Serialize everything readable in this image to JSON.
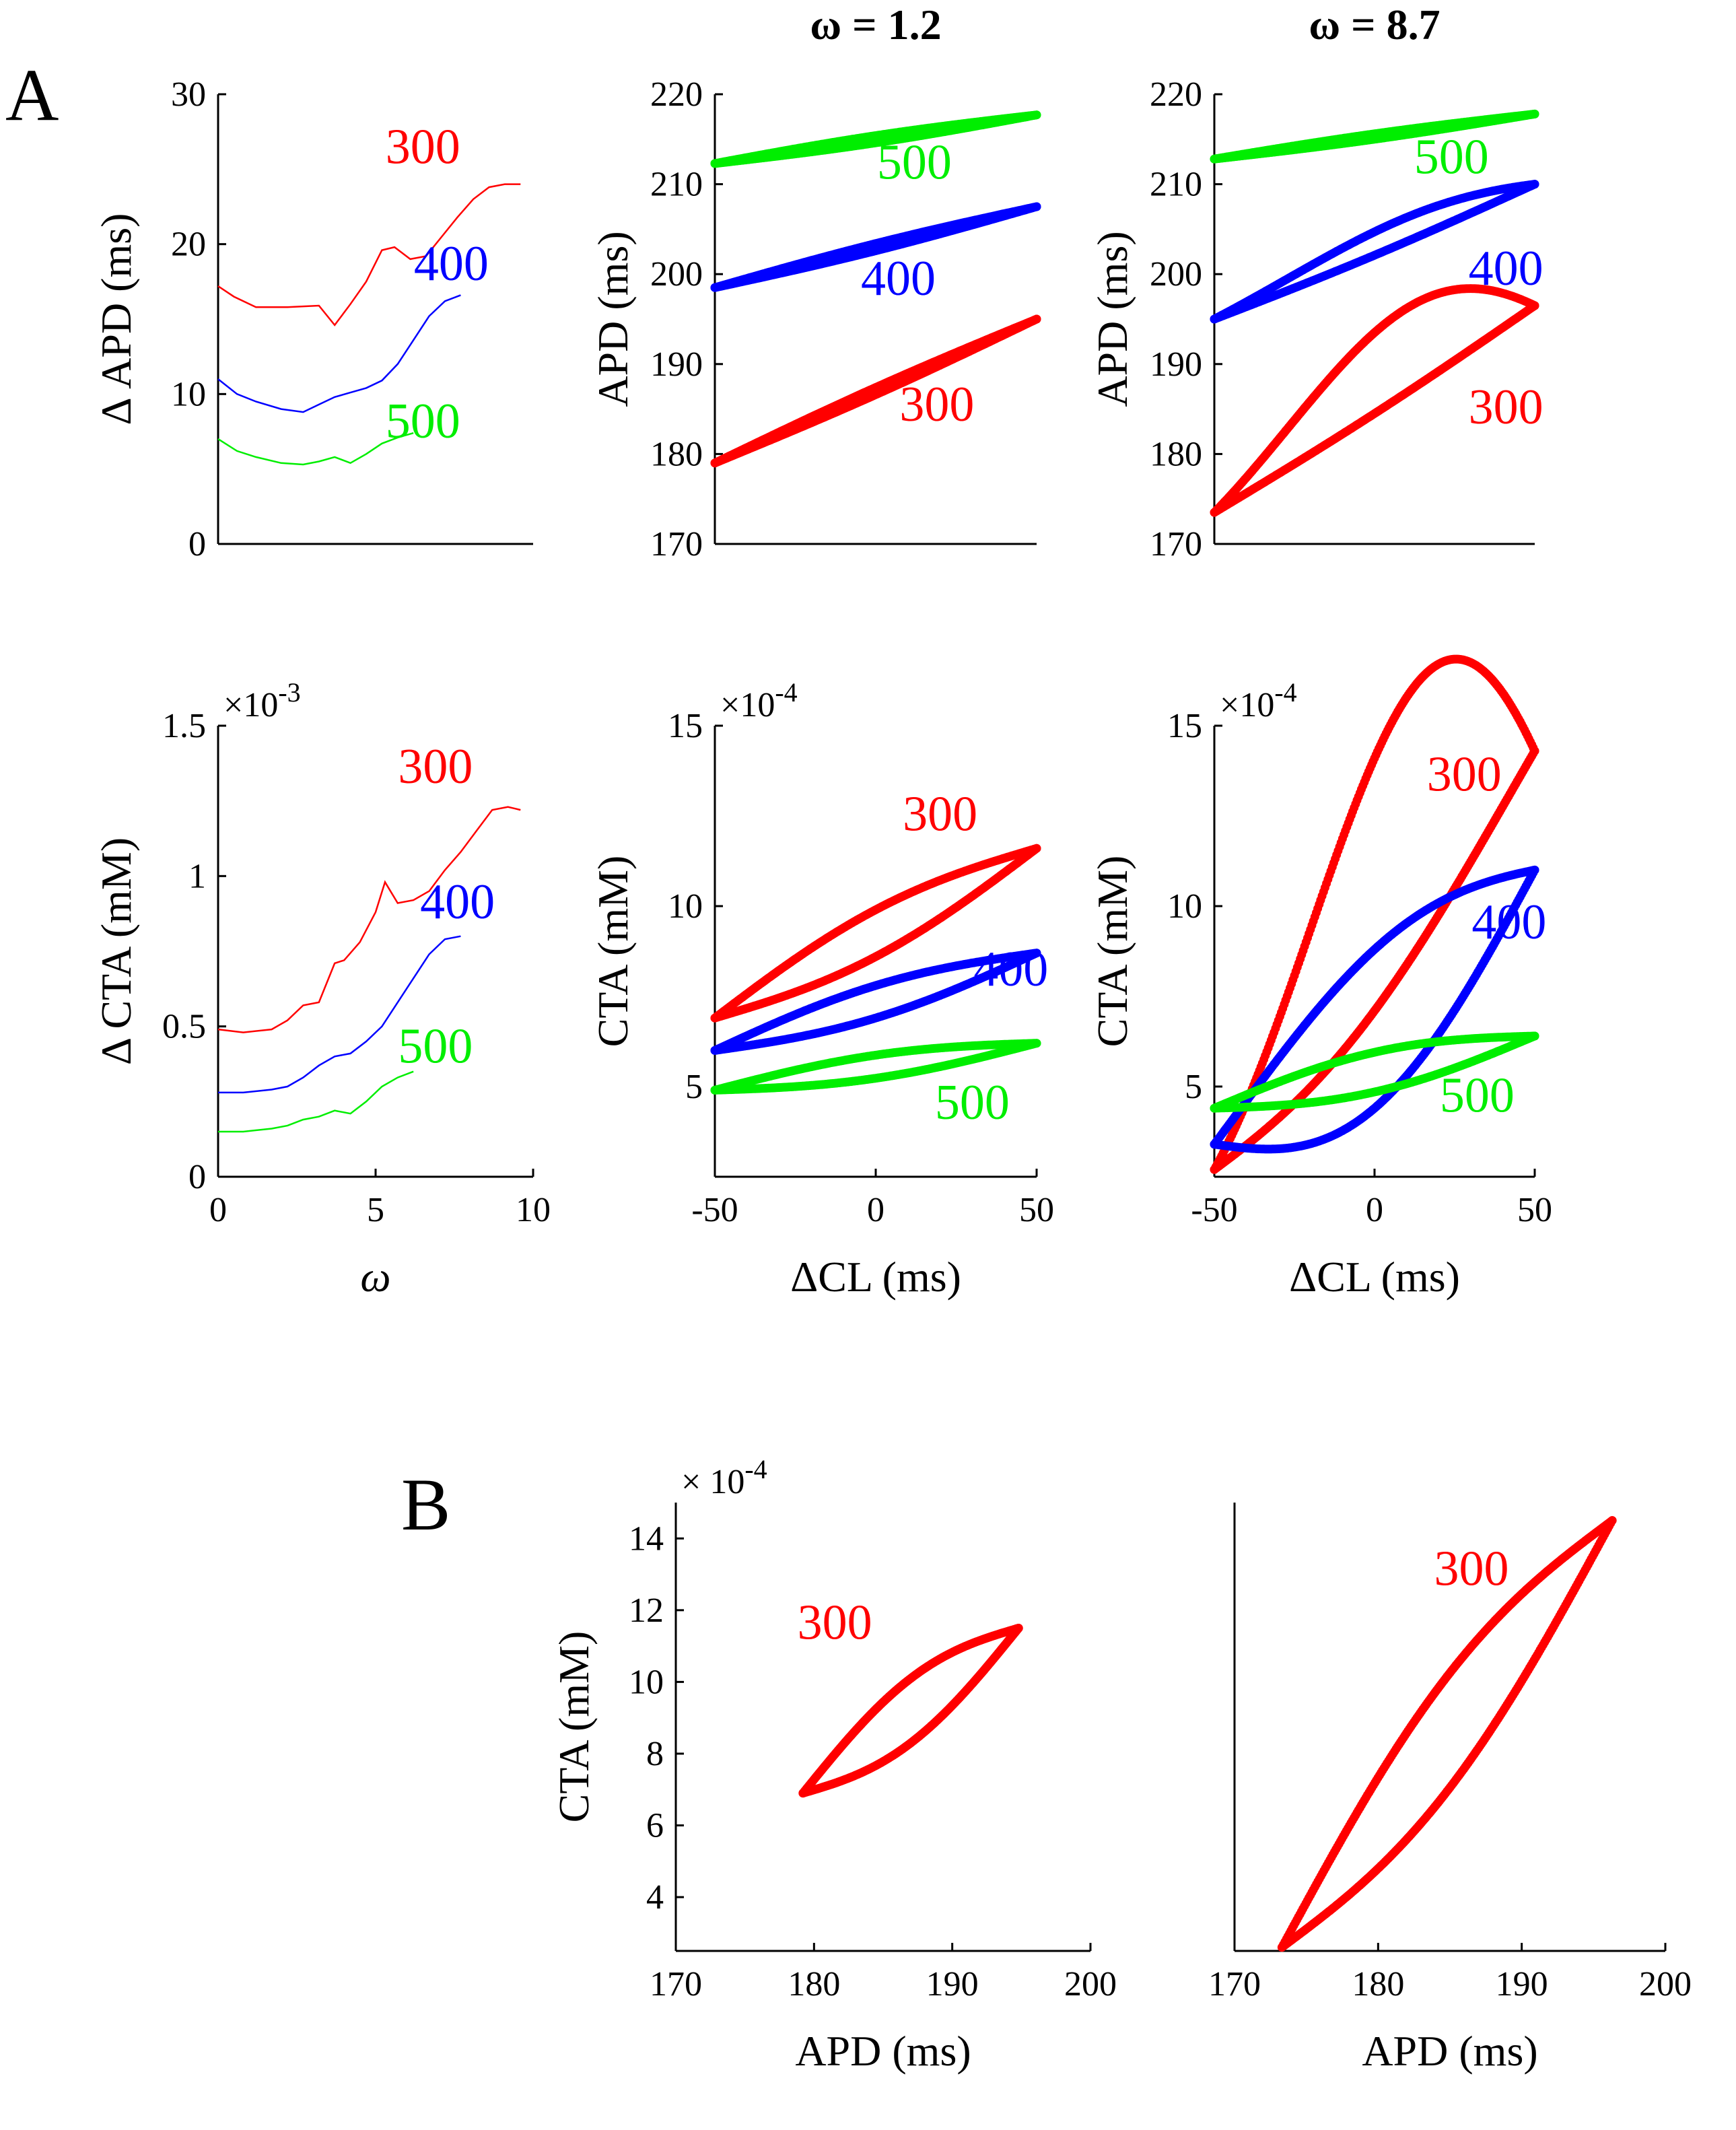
{
  "panel_letters": [
    "A",
    "B"
  ],
  "colors": {
    "300": "#ff0000",
    "400": "#0000ff",
    "500": "#00ee00"
  },
  "chart_data": [
    {
      "id": "dAPD-omega",
      "type": "line",
      "xlabel": "",
      "ylabel": "Δ APD (ms)",
      "title": "",
      "xlim": [
        0,
        10
      ],
      "ylim": [
        0,
        30
      ],
      "xticks": [],
      "yticks": [
        0,
        10,
        20,
        30
      ],
      "series": [
        {
          "name": "300",
          "x": [
            0,
            0.5,
            1.2,
            2.2,
            3.2,
            3.7,
            4.2,
            4.7,
            5.2,
            5.6,
            6.1,
            6.6,
            7.1,
            7.6,
            8.1,
            8.6,
            9.1,
            9.6
          ],
          "y": [
            17.2,
            16.5,
            15.8,
            15.8,
            15.9,
            14.6,
            16.0,
            17.5,
            19.6,
            19.8,
            19.0,
            19.2,
            20.5,
            21.8,
            23.0,
            23.8,
            24.0,
            24.0
          ]
        },
        {
          "name": "400",
          "x": [
            0,
            0.6,
            1.2,
            2,
            2.7,
            3.2,
            3.7,
            4.2,
            4.7,
            5.2,
            5.7,
            6.2,
            6.7,
            7.2,
            7.7
          ],
          "y": [
            11.0,
            10.0,
            9.5,
            9.0,
            8.8,
            9.3,
            9.8,
            10.1,
            10.4,
            10.9,
            12.0,
            13.6,
            15.2,
            16.2,
            16.6
          ]
        },
        {
          "name": "500",
          "x": [
            0,
            0.6,
            1.2,
            2,
            2.7,
            3.2,
            3.7,
            4.2,
            4.7,
            5.2,
            5.7,
            6.2
          ],
          "y": [
            7.0,
            6.2,
            5.8,
            5.4,
            5.3,
            5.5,
            5.8,
            5.4,
            6.0,
            6.7,
            7.1,
            7.4
          ]
        }
      ],
      "annotations": [
        {
          "text": "300",
          "x": 6.5,
          "y": 25.4
        },
        {
          "text": "400",
          "x": 7.4,
          "y": 17.6
        },
        {
          "text": "500",
          "x": 6.5,
          "y": 7.1
        }
      ]
    },
    {
      "id": "APD-dCL-w1.2",
      "type": "scatter",
      "title": "ω = 1.2",
      "xlabel": "",
      "ylabel": "APD (ms)",
      "xlim": [
        -50,
        50
      ],
      "ylim": [
        170,
        220
      ],
      "xticks": [],
      "yticks": [
        170,
        180,
        190,
        200,
        210,
        220
      ],
      "loops": [
        {
          "name": "300",
          "start": [
            -50,
            179
          ],
          "end": [
            50,
            195
          ],
          "wu": 0.4,
          "wl": 0.4,
          "bu": 0,
          "bl": 0
        },
        {
          "name": "400",
          "start": [
            -50,
            198.5
          ],
          "end": [
            50,
            207.5
          ],
          "wu": 0.4,
          "wl": 0.4,
          "bu": 0,
          "bl": 0
        },
        {
          "name": "500",
          "start": [
            -50,
            212.3
          ],
          "end": [
            50,
            217.7
          ],
          "wu": 0.4,
          "wl": 0.4,
          "bu": 0,
          "bl": 0
        }
      ],
      "annotations": [
        {
          "text": "500",
          "x": 12,
          "y": 210.6
        },
        {
          "text": "400",
          "x": 7,
          "y": 197.7
        },
        {
          "text": "300",
          "x": 19,
          "y": 183.7
        }
      ]
    },
    {
      "id": "APD-dCL-w8.7",
      "type": "scatter",
      "title": "ω = 8.7",
      "xlabel": "",
      "ylabel": "APD (ms)",
      "xlim": [
        -50,
        50
      ],
      "ylim": [
        170,
        220
      ],
      "xticks": [],
      "yticks": [
        170,
        180,
        190,
        200,
        210,
        220
      ],
      "loops": [
        {
          "name": "300",
          "start": [
            -50,
            173.5
          ],
          "end": [
            50,
            196.5
          ],
          "wu": 8.5,
          "wl": 0.5,
          "bu": 1,
          "bl": 0
        },
        {
          "name": "400",
          "start": [
            -50,
            195
          ],
          "end": [
            50,
            210
          ],
          "wu": 2.2,
          "wl": 0.4,
          "bu": 1,
          "bl": 0
        },
        {
          "name": "500",
          "start": [
            -50,
            212.8
          ],
          "end": [
            50,
            217.8
          ],
          "wu": 0.3,
          "wl": 0.3,
          "bu": 0,
          "bl": 0
        }
      ],
      "annotations": [
        {
          "text": "500",
          "x": 24,
          "y": 211.2
        },
        {
          "text": "400",
          "x": 41,
          "y": 198.8
        },
        {
          "text": "300",
          "x": 41,
          "y": 183.4
        }
      ]
    },
    {
      "id": "dCTA-omega",
      "type": "line",
      "xlabel": "ω",
      "ylabel": "Δ CTA (mM)",
      "title": "",
      "scale_label": "×10",
      "scale_exp": "-3",
      "xlim": [
        0,
        10
      ],
      "ylim": [
        0,
        1.5
      ],
      "xticks": [
        0,
        5,
        10
      ],
      "yticks": [
        0,
        0.5,
        1,
        1.5
      ],
      "series": [
        {
          "name": "300",
          "x": [
            0,
            0.8,
            1.7,
            2.2,
            2.7,
            3.2,
            3.7,
            4.0,
            4.5,
            5.0,
            5.3,
            5.7,
            6.2,
            6.7,
            7.2,
            7.7,
            8.2,
            8.7,
            9.2,
            9.6
          ],
          "y": [
            0.49,
            0.48,
            0.49,
            0.52,
            0.57,
            0.58,
            0.71,
            0.72,
            0.78,
            0.88,
            0.98,
            0.91,
            0.92,
            0.95,
            1.02,
            1.08,
            1.15,
            1.22,
            1.23,
            1.22
          ]
        },
        {
          "name": "400",
          "x": [
            0,
            0.8,
            1.7,
            2.2,
            2.7,
            3.2,
            3.7,
            4.2,
            4.7,
            5.2,
            5.7,
            6.2,
            6.7,
            7.2,
            7.7
          ],
          "y": [
            0.28,
            0.28,
            0.29,
            0.3,
            0.33,
            0.37,
            0.4,
            0.41,
            0.45,
            0.5,
            0.58,
            0.66,
            0.74,
            0.79,
            0.8
          ]
        },
        {
          "name": "500",
          "x": [
            0,
            0.8,
            1.7,
            2.2,
            2.7,
            3.2,
            3.7,
            4.2,
            4.7,
            5.2,
            5.7,
            6.2
          ],
          "y": [
            0.15,
            0.15,
            0.16,
            0.17,
            0.19,
            0.2,
            0.22,
            0.21,
            0.25,
            0.3,
            0.33,
            0.35
          ]
        }
      ],
      "annotations": [
        {
          "text": "300",
          "x": 6.9,
          "y": 1.31
        },
        {
          "text": "400",
          "x": 7.6,
          "y": 0.86
        },
        {
          "text": "500",
          "x": 6.9,
          "y": 0.38
        }
      ]
    },
    {
      "id": "CTA-dCL-w1.2",
      "type": "scatter",
      "xlabel": "ΔCL (ms)",
      "ylabel": "CTA (mM)",
      "title": "",
      "scale_label": "×10",
      "scale_exp": "-4",
      "xlim": [
        -50,
        50
      ],
      "ylim": [
        2.5,
        15
      ],
      "xticks": [
        -50,
        0,
        50
      ],
      "yticks": [
        5,
        10,
        15
      ],
      "loops": [
        {
          "name": "300",
          "start": [
            -50,
            6.9
          ],
          "end": [
            50,
            11.6
          ],
          "wu": 0.65,
          "wl": 0.65,
          "bu": 0,
          "bl": 0
        },
        {
          "name": "400",
          "start": [
            -50,
            6.0
          ],
          "end": [
            50,
            8.7
          ],
          "wu": 0.45,
          "wl": 0.45,
          "bu": 0,
          "bl": 0
        },
        {
          "name": "500",
          "start": [
            -50,
            4.9
          ],
          "end": [
            50,
            6.2
          ],
          "wu": 0.32,
          "wl": 0.32,
          "bu": 0,
          "bl": 0
        }
      ],
      "annotations": [
        {
          "text": "300",
          "x": 20,
          "y": 12.1
        },
        {
          "text": "400",
          "x": 42,
          "y": 7.8
        },
        {
          "text": "500",
          "x": 30,
          "y": 4.1
        }
      ]
    },
    {
      "id": "CTA-dCL-w8.7",
      "type": "scatter",
      "xlabel": "ΔCL (ms)",
      "ylabel": "CTA (mM)",
      "title": "",
      "scale_label": "×10",
      "scale_exp": "-4",
      "xlim": [
        -50,
        50
      ],
      "ylim": [
        2.5,
        15
      ],
      "xticks": [
        -50,
        0,
        50
      ],
      "yticks": [
        5,
        10,
        15
      ],
      "loops": [
        {
          "name": "300",
          "start": [
            -50,
            2.7
          ],
          "end": [
            50,
            14.3
          ],
          "wu": 5.6,
          "wl": 1.4,
          "bu": 1.5,
          "bl": -0.3
        },
        {
          "name": "400",
          "start": [
            -50,
            3.4
          ],
          "end": [
            50,
            11.0
          ],
          "wu": 1.6,
          "wl": 2.8,
          "bu": 0.3,
          "bl": 0
        },
        {
          "name": "500",
          "start": [
            -50,
            4.4
          ],
          "end": [
            50,
            6.4
          ],
          "wu": 0.55,
          "wl": 0.55,
          "bu": 0,
          "bl": 0
        }
      ],
      "annotations": [
        {
          "text": "300",
          "x": 28,
          "y": 13.2
        },
        {
          "text": "400",
          "x": 42,
          "y": 9.1
        },
        {
          "text": "500",
          "x": 32,
          "y": 4.3
        }
      ]
    },
    {
      "id": "CTA-APD-w1.2",
      "type": "scatter",
      "xlabel": "APD (ms)",
      "ylabel": "CTA (mM)",
      "title": "",
      "scale_label": "× 10",
      "scale_exp": "-4",
      "xlim": [
        170,
        200
      ],
      "ylim": [
        2.5,
        15
      ],
      "xticks": [
        170,
        180,
        190,
        200
      ],
      "yticks": [
        4,
        6,
        8,
        10,
        12,
        14
      ],
      "loops": [
        {
          "name": "300",
          "start": [
            179.2,
            6.9
          ],
          "end": [
            194.8,
            11.5
          ],
          "wu": 0.9,
          "wl": 0.9,
          "bu": 0,
          "bl": 0
        }
      ],
      "annotations": [
        {
          "text": "300",
          "x": 181.5,
          "y": 11.2
        }
      ]
    },
    {
      "id": "CTA-APD-w8.7",
      "type": "scatter",
      "xlabel": "APD (ms)",
      "ylabel": "",
      "title": "",
      "xlim": [
        170,
        200
      ],
      "ylim": [
        2.5,
        15
      ],
      "xticks": [
        170,
        180,
        190,
        200
      ],
      "yticks": [],
      "loops": [
        {
          "name": "300",
          "start": [
            173.3,
            2.6
          ],
          "end": [
            196.3,
            14.5
          ],
          "wu": 1.6,
          "wl": 1.6,
          "bu": 0,
          "bl": 0
        }
      ],
      "annotations": [
        {
          "text": "300",
          "x": 186.5,
          "y": 12.7
        }
      ]
    }
  ]
}
